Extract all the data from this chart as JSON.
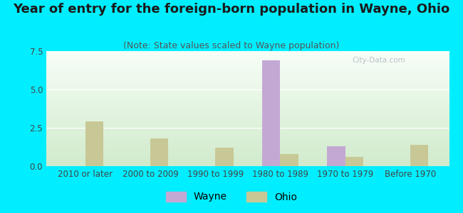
{
  "title": "Year of entry for the foreign-born population in Wayne, Ohio",
  "subtitle": "(Note: State values scaled to Wayne population)",
  "categories": [
    "2010 or later",
    "2000 to 2009",
    "1990 to 1999",
    "1980 to 1989",
    "1970 to 1979",
    "Before 1970"
  ],
  "wayne_values": [
    0,
    0,
    0,
    6.9,
    1.3,
    0
  ],
  "ohio_values": [
    2.9,
    1.8,
    1.2,
    0.8,
    0.6,
    1.4
  ],
  "wayne_color": "#c4a8d4",
  "ohio_color": "#c8c896",
  "background_outer": "#00eeff",
  "ylim": [
    0,
    7.5
  ],
  "yticks": [
    0,
    2.5,
    5,
    7.5
  ],
  "bar_width": 0.28,
  "legend_wayne": "Wayne",
  "legend_ohio": "Ohio",
  "title_fontsize": 13,
  "subtitle_fontsize": 9,
  "tick_fontsize": 8.5,
  "legend_fontsize": 10
}
